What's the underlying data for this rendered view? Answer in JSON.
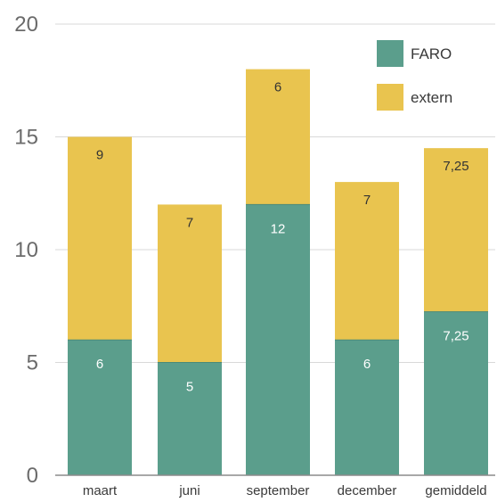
{
  "chart_data": {
    "type": "bar",
    "stacked": true,
    "categories": [
      "maart",
      "juni",
      "september",
      "december",
      "gemiddeld"
    ],
    "series": [
      {
        "name": "FARO",
        "values": [
          6,
          5,
          12,
          6,
          7.25
        ],
        "labels": [
          "6",
          "5",
          "12",
          "6",
          "7,25"
        ],
        "color": "#5b9e8c"
      },
      {
        "name": "extern",
        "values": [
          9,
          7,
          6,
          7,
          7.25
        ],
        "labels": [
          "9",
          "7",
          "6",
          "7",
          "7,25"
        ],
        "color": "#e9c44f"
      }
    ],
    "ylim": [
      0,
      20
    ],
    "yticks": [
      "0",
      "5",
      "10",
      "15",
      "20"
    ],
    "grid": true,
    "legend": "top-right"
  }
}
